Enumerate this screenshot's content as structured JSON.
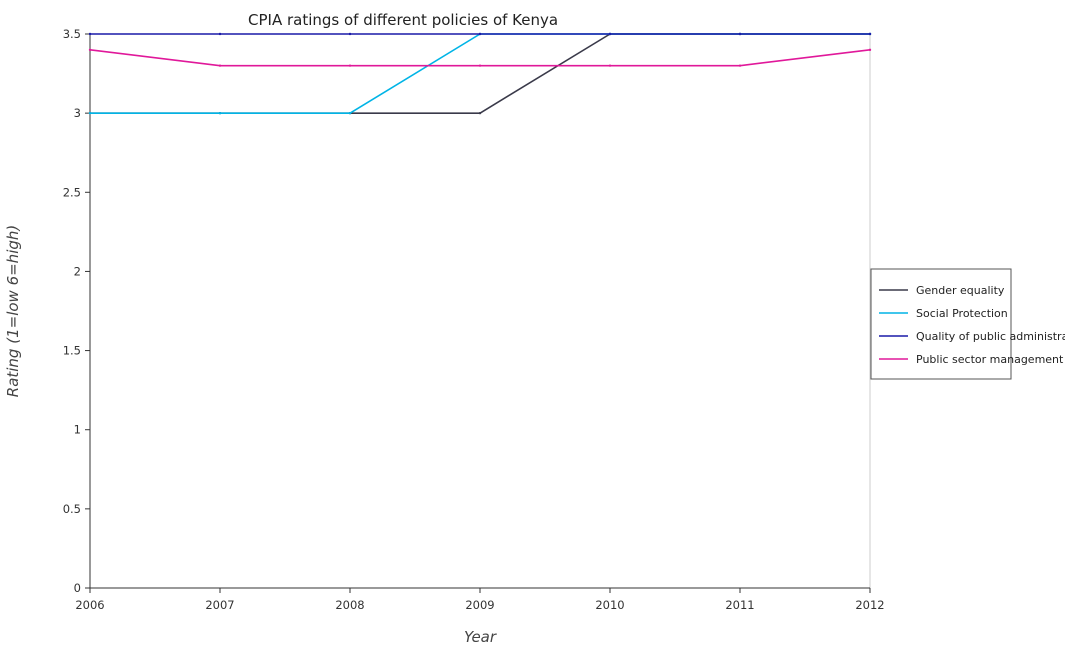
{
  "chart_data": {
    "type": "line",
    "title": "CPIA ratings of different policies of Kenya",
    "xlabel": "Year",
    "ylabel": "Rating (1=low 6=high)",
    "x": [
      "2006",
      "2007",
      "2008",
      "2009",
      "2010",
      "2011",
      "2012"
    ],
    "ylim": [
      0,
      3.5
    ],
    "yticks": [
      "0",
      "0.5",
      "1",
      "1.5",
      "2",
      "2.5",
      "3",
      "3.5"
    ],
    "legend_position": "right",
    "grid": false,
    "series": [
      {
        "name": "Gender equality",
        "color": "#3a3a4a",
        "values": [
          3.0,
          3.0,
          3.0,
          3.0,
          3.5,
          3.5,
          3.5
        ]
      },
      {
        "name": "Social Protection",
        "color": "#00b4e6",
        "values": [
          3.0,
          3.0,
          3.0,
          3.5,
          3.5,
          3.5,
          3.5
        ]
      },
      {
        "name": "Quality of public administration",
        "color": "#1a1aa8",
        "values": [
          3.5,
          3.5,
          3.5,
          3.5,
          3.5,
          3.5,
          3.5
        ]
      },
      {
        "name": "Public sector management",
        "color": "#e0189a",
        "values": [
          3.4,
          3.3,
          3.3,
          3.3,
          3.3,
          3.3,
          3.4
        ]
      }
    ]
  }
}
